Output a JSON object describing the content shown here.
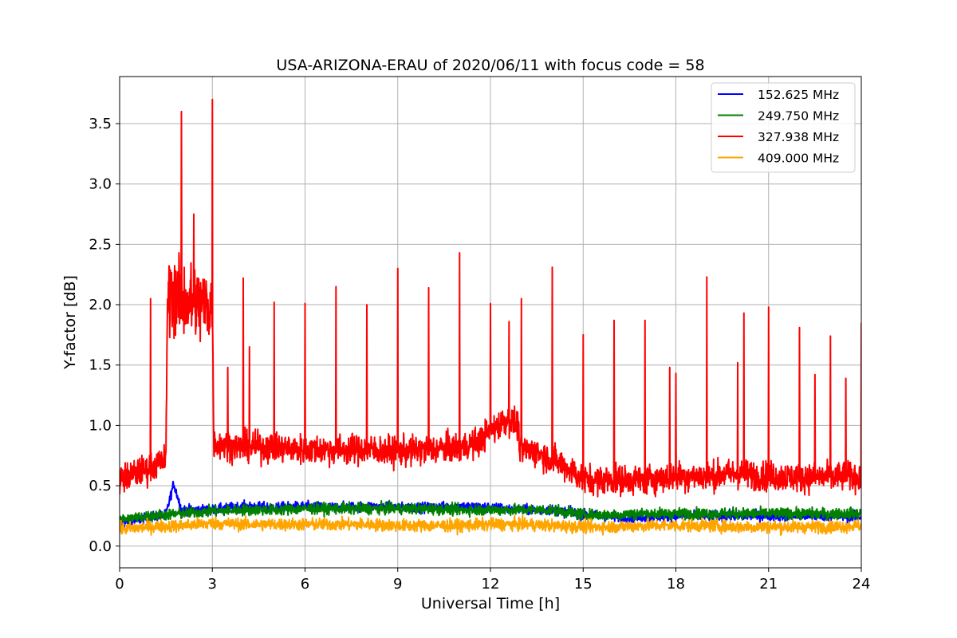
{
  "chart_data": {
    "type": "line",
    "title": "USA-ARIZONA-ERAU of 2020/06/11 with focus code = 58",
    "xlabel": "Universal Time [h]",
    "ylabel": "Y-factor [dB]",
    "xlim": [
      0,
      24
    ],
    "ylim": [
      -0.18,
      3.89
    ],
    "xticks": [
      0,
      3,
      6,
      9,
      12,
      15,
      18,
      21,
      24
    ],
    "xtick_labels": [
      "0",
      "3",
      "6",
      "9",
      "12",
      "15",
      "18",
      "21",
      "24"
    ],
    "yticks": [
      0.0,
      0.5,
      1.0,
      1.5,
      2.0,
      2.5,
      3.0,
      3.5
    ],
    "ytick_labels": [
      "0.0",
      "0.5",
      "1.0",
      "1.5",
      "2.0",
      "2.5",
      "3.0",
      "3.5"
    ],
    "grid": true,
    "legend_position": "top-right",
    "series": [
      {
        "name": "152.625 MHz",
        "color": "#0000ff",
        "x": [
          0,
          1,
          1.5,
          1.75,
          2,
          3,
          4,
          5,
          6,
          7,
          8,
          9,
          10,
          11,
          12,
          13,
          14,
          15,
          16,
          17,
          18,
          19,
          20,
          21,
          22,
          23,
          24
        ],
        "y": [
          0.18,
          0.24,
          0.26,
          0.52,
          0.3,
          0.3,
          0.33,
          0.32,
          0.33,
          0.32,
          0.33,
          0.32,
          0.32,
          0.33,
          0.32,
          0.3,
          0.3,
          0.26,
          0.24,
          0.24,
          0.25,
          0.25,
          0.25,
          0.25,
          0.25,
          0.25,
          0.24
        ],
        "noise": 0.04
      },
      {
        "name": "249.750 MHz",
        "color": "#008000",
        "x": [
          0,
          1,
          2,
          3,
          4,
          5,
          6,
          7,
          8,
          9,
          10,
          11,
          12,
          13,
          14,
          15,
          16,
          17,
          18,
          19,
          20,
          21,
          22,
          23,
          24
        ],
        "y": [
          0.22,
          0.25,
          0.27,
          0.29,
          0.3,
          0.3,
          0.31,
          0.31,
          0.31,
          0.31,
          0.31,
          0.3,
          0.3,
          0.3,
          0.3,
          0.26,
          0.26,
          0.27,
          0.27,
          0.27,
          0.27,
          0.27,
          0.27,
          0.27,
          0.27
        ],
        "noise": 0.045
      },
      {
        "name": "327.938 MHz",
        "color": "#ff0000",
        "x": [
          0,
          1,
          1.5,
          1.55,
          2,
          2.5,
          3,
          3.05,
          4,
          5,
          6,
          7,
          8,
          9,
          10,
          11,
          11.5,
          12,
          12.5,
          12.9,
          12.95,
          13.5,
          14.5,
          15,
          16,
          17,
          18,
          19,
          20,
          21,
          22,
          23,
          24
        ],
        "y": [
          0.55,
          0.65,
          0.72,
          2.1,
          2.05,
          2.0,
          2.0,
          0.85,
          0.82,
          0.82,
          0.8,
          0.8,
          0.8,
          0.78,
          0.8,
          0.82,
          0.85,
          0.95,
          1.05,
          1.0,
          0.8,
          0.78,
          0.65,
          0.55,
          0.55,
          0.55,
          0.58,
          0.58,
          0.6,
          0.58,
          0.57,
          0.57,
          0.58
        ],
        "noise": 0.12,
        "spikes": [
          {
            "x": 1.0,
            "y": 2.05
          },
          {
            "x": 2.0,
            "y": 3.6
          },
          {
            "x": 2.4,
            "y": 2.75
          },
          {
            "x": 3.0,
            "y": 3.7
          },
          {
            "x": 3.5,
            "y": 1.48
          },
          {
            "x": 4.0,
            "y": 2.22
          },
          {
            "x": 4.2,
            "y": 1.65
          },
          {
            "x": 5.0,
            "y": 2.02
          },
          {
            "x": 6.0,
            "y": 2.01
          },
          {
            "x": 7.0,
            "y": 2.15
          },
          {
            "x": 8.0,
            "y": 2.0
          },
          {
            "x": 9.0,
            "y": 2.3
          },
          {
            "x": 10.0,
            "y": 2.14
          },
          {
            "x": 11.0,
            "y": 2.43
          },
          {
            "x": 12.0,
            "y": 2.01
          },
          {
            "x": 12.6,
            "y": 1.86
          },
          {
            "x": 13.0,
            "y": 2.05
          },
          {
            "x": 14.0,
            "y": 2.31
          },
          {
            "x": 15.0,
            "y": 1.75
          },
          {
            "x": 16.0,
            "y": 1.87
          },
          {
            "x": 17.0,
            "y": 1.87
          },
          {
            "x": 17.8,
            "y": 1.48
          },
          {
            "x": 18.0,
            "y": 1.43
          },
          {
            "x": 19.0,
            "y": 2.23
          },
          {
            "x": 20.0,
            "y": 1.52
          },
          {
            "x": 20.2,
            "y": 1.93
          },
          {
            "x": 21.0,
            "y": 1.98
          },
          {
            "x": 22.0,
            "y": 1.81
          },
          {
            "x": 22.5,
            "y": 1.42
          },
          {
            "x": 23.0,
            "y": 1.74
          },
          {
            "x": 23.5,
            "y": 1.39
          },
          {
            "x": 24.0,
            "y": 1.85
          }
        ]
      },
      {
        "name": "409.000 MHz",
        "color": "#ffa500",
        "x": [
          0,
          1,
          2,
          3,
          4,
          5,
          6,
          7,
          8,
          9,
          10,
          11,
          12,
          13,
          14,
          15,
          16,
          17,
          18,
          19,
          20,
          21,
          22,
          23,
          24
        ],
        "y": [
          0.14,
          0.16,
          0.17,
          0.19,
          0.18,
          0.18,
          0.18,
          0.18,
          0.18,
          0.17,
          0.17,
          0.17,
          0.18,
          0.18,
          0.17,
          0.16,
          0.16,
          0.17,
          0.17,
          0.17,
          0.16,
          0.16,
          0.16,
          0.16,
          0.17
        ],
        "noise": 0.05
      }
    ]
  }
}
